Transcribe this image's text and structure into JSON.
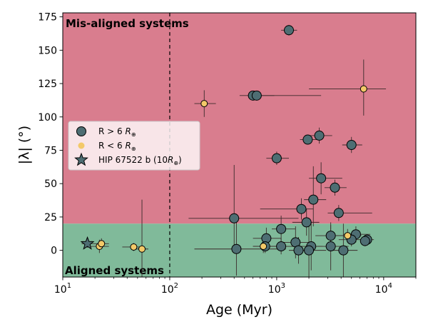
{
  "chart_data": {
    "type": "scatter",
    "xlabel": "Age (Myr)",
    "ylabel": "|λ| (°)",
    "xscale": "log",
    "xlim": [
      10,
      20000
    ],
    "ylim": [
      -20,
      178
    ],
    "x_ticks": [
      {
        "value": 10,
        "base": "10",
        "exp": "1"
      },
      {
        "value": 100,
        "base": "10",
        "exp": "2"
      },
      {
        "value": 1000,
        "base": "10",
        "exp": "3"
      },
      {
        "value": 10000,
        "base": "10",
        "exp": "4"
      }
    ],
    "y_ticks": [
      0,
      25,
      50,
      75,
      100,
      125,
      150,
      175
    ],
    "regions": [
      {
        "label": "Mis-aligned systems",
        "y_from": 20,
        "y_to": 178,
        "color": "#d97d8e"
      },
      {
        "label": "Aligned systems",
        "y_from": -20,
        "y_to": 20,
        "color": "#80ba9a"
      }
    ],
    "reference_line_x": 100,
    "legend_position": "center-left",
    "series": [
      {
        "name": "R > 6 R⊕",
        "legend": {
          "text": "R > 6 ",
          "sym": "R",
          "sub": "⊕"
        },
        "marker": "circle",
        "color": "#4e6e73",
        "points": [
          {
            "x": 1300,
            "y": 165,
            "xerr": [
              200,
              250
            ],
            "yerr": [
              4,
              4
            ]
          },
          {
            "x": 600,
            "y": 116,
            "xerr": [
              150,
              2000
            ],
            "yerr": [
              3,
              3
            ]
          },
          {
            "x": 650,
            "y": 116,
            "xerr": [
              100,
              300
            ],
            "yerr": [
              3,
              3
            ]
          },
          {
            "x": 2500,
            "y": 86,
            "xerr": [
              600,
              800
            ],
            "yerr": [
              6,
              6
            ]
          },
          {
            "x": 1950,
            "y": 83,
            "xerr": [
              300,
              400
            ],
            "yerr": [
              3,
              3
            ]
          },
          {
            "x": 5000,
            "y": 79,
            "xerr": [
              900,
              1300
            ],
            "yerr": [
              6,
              6
            ]
          },
          {
            "x": 1000,
            "y": 69,
            "xerr": [
              200,
              300
            ],
            "yerr": [
              5,
              5
            ]
          },
          {
            "x": 2600,
            "y": 54,
            "xerr": [
              600,
              1500
            ],
            "yerr": [
              12,
              12
            ]
          },
          {
            "x": 3500,
            "y": 47,
            "xerr": [
              700,
              1000
            ],
            "yerr": [
              6,
              6
            ]
          },
          {
            "x": 2200,
            "y": 38,
            "xerr": [
              400,
              700
            ],
            "yerr": [
              20,
              25
            ]
          },
          {
            "x": 1700,
            "y": 31,
            "xerr": [
              1000,
              500
            ],
            "yerr": [
              8,
              8
            ]
          },
          {
            "x": 3800,
            "y": 28,
            "xerr": [
              800,
              4000
            ],
            "yerr": [
              6,
              6
            ]
          },
          {
            "x": 400,
            "y": 24,
            "xerr": [
              250,
              1200
            ],
            "yerr": [
              20,
              40
            ]
          },
          {
            "x": 1900,
            "y": 21,
            "xerr": [
              500,
              600
            ],
            "yerr": [
              10,
              10
            ]
          },
          {
            "x": 1100,
            "y": 16,
            "xerr": [
              200,
              400
            ],
            "yerr": [
              10,
              10
            ]
          },
          {
            "x": 3200,
            "y": 11,
            "xerr": [
              900,
              3000
            ],
            "yerr": [
              8,
              8
            ]
          },
          {
            "x": 5500,
            "y": 12,
            "xerr": [
              1300,
              2000
            ],
            "yerr": [
              6,
              6
            ]
          },
          {
            "x": 800,
            "y": 9,
            "xerr": [
              200,
              300
            ],
            "yerr": [
              8,
              8
            ]
          },
          {
            "x": 5000,
            "y": 8,
            "xerr": [
              1200,
              2000
            ],
            "yerr": [
              5,
              5
            ]
          },
          {
            "x": 7000,
            "y": 8,
            "xerr": [
              900,
              1100
            ],
            "yerr": [
              4,
              4
            ]
          },
          {
            "x": 6700,
            "y": 7,
            "xerr": [
              600,
              800
            ],
            "yerr": [
              4,
              4
            ]
          },
          {
            "x": 1500,
            "y": 6,
            "xerr": [
              400,
              700
            ],
            "yerr": [
              12,
              12
            ]
          },
          {
            "x": 1100,
            "y": 3,
            "xerr": [
              200,
              400
            ],
            "yerr": [
              6,
              6
            ]
          },
          {
            "x": 780,
            "y": 3,
            "xerr": [
              180,
              250
            ],
            "yerr": [
              5,
              5
            ]
          },
          {
            "x": 2100,
            "y": 3,
            "xerr": [
              400,
              600
            ],
            "yerr": [
              18,
              18
            ]
          },
          {
            "x": 3200,
            "y": 3,
            "xerr": [
              800,
              1500
            ],
            "yerr": [
              18,
              18
            ]
          },
          {
            "x": 1600,
            "y": 0,
            "xerr": [
              300,
              500
            ],
            "yerr": [
              10,
              10
            ]
          },
          {
            "x": 2000,
            "y": 0,
            "xerr": [
              500,
              900
            ],
            "yerr": [
              20,
              20
            ]
          },
          {
            "x": 4200,
            "y": 0,
            "xerr": [
              1000,
              1500
            ],
            "yerr": [
              20,
              20
            ]
          },
          {
            "x": 420,
            "y": 1,
            "xerr": [
              250,
              800
            ],
            "yerr": [
              20,
              20
            ]
          }
        ]
      },
      {
        "name": "R < 6 R⊕",
        "legend": {
          "text": "R < 6 ",
          "sym": "R",
          "sub": "⊕"
        },
        "marker": "circle",
        "color": "#f3c969",
        "points": [
          {
            "x": 210,
            "y": 110,
            "xerr": [
              40,
              60
            ],
            "yerr": [
              10,
              10
            ]
          },
          {
            "x": 6500,
            "y": 121,
            "xerr": [
              4500,
              4000
            ],
            "yerr": [
              20,
              22
            ]
          },
          {
            "x": 22,
            "y": 3,
            "xerr": [
              5,
              5
            ],
            "yerr": [
              5,
              5
            ]
          },
          {
            "x": 23,
            "y": 5,
            "xerr": [
              4,
              4
            ],
            "yerr": [
              4,
              4
            ]
          },
          {
            "x": 46,
            "y": 2.5,
            "xerr": [
              10,
              10
            ],
            "yerr": [
              3,
              3
            ]
          },
          {
            "x": 55,
            "y": 1,
            "xerr": [
              8,
              8
            ],
            "yerr": [
              37,
              37
            ]
          },
          {
            "x": 750,
            "y": 3,
            "xerr": [
              150,
              150
            ],
            "yerr": [
              5,
              5
            ]
          },
          {
            "x": 4600,
            "y": 11,
            "xerr": [
              1000,
              1000
            ],
            "yerr": [
              5,
              5
            ]
          }
        ]
      },
      {
        "name": "HIP 67522 b (10R⊕)",
        "legend": {
          "text": "HIP 67522 b (10",
          "sym": "R",
          "sub": "⊕",
          "tail": ")"
        },
        "marker": "star",
        "color": "#4e6e73",
        "points": [
          {
            "x": 17,
            "y": 5,
            "xerr": [
              2,
              2
            ],
            "yerr": [
              3,
              3
            ]
          }
        ]
      }
    ]
  }
}
